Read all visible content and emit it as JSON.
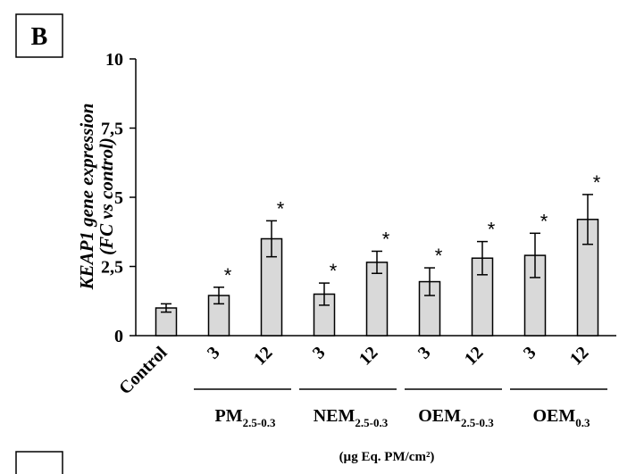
{
  "panel_label": "B",
  "chart_data": {
    "type": "bar",
    "ylabel_line1": "KEAP1 gene expression",
    "ylabel_line2": "(FC vs control)",
    "xlabel": "(µg Eq. PM/cm²)",
    "ylim": [
      0,
      10
    ],
    "yticks": [
      {
        "value": 0,
        "label": "0"
      },
      {
        "value": 2.5,
        "label": "2,5"
      },
      {
        "value": 5,
        "label": "5"
      },
      {
        "value": 7.5,
        "label": "7,5"
      },
      {
        "value": 10,
        "label": "10"
      }
    ],
    "grid": false,
    "legend": "none",
    "bar_color": "#d9d9d9",
    "bars": [
      {
        "label": "Control",
        "value": 1.0,
        "error": 0.15,
        "significant": false
      },
      {
        "label": "3",
        "value": 1.45,
        "error": 0.3,
        "significant": true
      },
      {
        "label": "12",
        "value": 3.5,
        "error": 0.65,
        "significant": true
      },
      {
        "label": "3",
        "value": 1.5,
        "error": 0.4,
        "significant": true
      },
      {
        "label": "12",
        "value": 2.65,
        "error": 0.4,
        "significant": true
      },
      {
        "label": "3",
        "value": 1.95,
        "error": 0.5,
        "significant": true
      },
      {
        "label": "12",
        "value": 2.8,
        "error": 0.6,
        "significant": true
      },
      {
        "label": "3",
        "value": 2.9,
        "error": 0.8,
        "significant": true
      },
      {
        "label": "12",
        "value": 4.2,
        "error": 0.9,
        "significant": true
      }
    ],
    "significance_marker": "*",
    "groups": [
      {
        "base": "PM",
        "sub": "2.5-0.3",
        "bars": [
          1,
          2
        ]
      },
      {
        "base": "NEM",
        "sub": "2.5-0.3",
        "bars": [
          3,
          4
        ]
      },
      {
        "base": "OEM",
        "sub": "2.5-0.3",
        "bars": [
          5,
          6
        ]
      },
      {
        "base": "OEM",
        "sub": "0.3",
        "bars": [
          7,
          8
        ]
      }
    ]
  }
}
